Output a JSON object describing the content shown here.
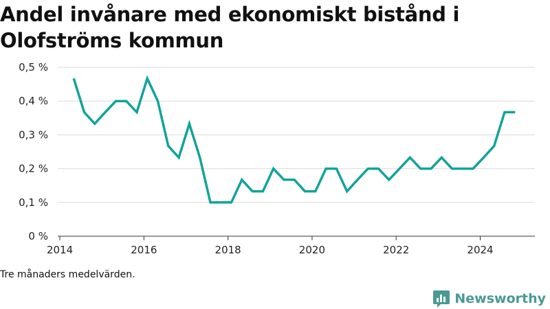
{
  "title": "Andel invånare med ekonomiskt bistånd i Olofströms kommun",
  "footnote": "Tre månaders medelvärden.",
  "brand": {
    "name": "Newsworthy",
    "icon": "newsworthy-logo-icon",
    "color": "#4a9a93"
  },
  "colors": {
    "line": "#12a39a",
    "grid": "#d9d9d9",
    "axis": "#333333"
  },
  "chart_data": {
    "type": "line",
    "title": "Andel invånare med ekonomiskt bistånd i Olofströms kommun",
    "xlabel": "",
    "ylabel": "",
    "xlim": [
      2013.95,
      2025.3
    ],
    "ylim": [
      0,
      0.5
    ],
    "y_ticks": [
      0,
      0.1,
      0.2,
      0.3,
      0.4,
      0.5
    ],
    "y_tick_labels": [
      "0 %",
      "0,1 %",
      "0,2 %",
      "0,3 %",
      "0,4 %",
      "0,5 %"
    ],
    "x_ticks": [
      2014,
      2016,
      2018,
      2020,
      2022,
      2024
    ],
    "x_tick_labels": [
      "2014",
      "2016",
      "2018",
      "2020",
      "2022",
      "2024"
    ],
    "grid": true,
    "series": [
      {
        "values": [
          [
            2014.33,
            0.467
          ],
          [
            2014.58,
            0.367
          ],
          [
            2014.83,
            0.333
          ],
          [
            2015.08,
            0.367
          ],
          [
            2015.33,
            0.4
          ],
          [
            2015.58,
            0.4
          ],
          [
            2015.83,
            0.367
          ],
          [
            2016.08,
            0.467
          ],
          [
            2016.33,
            0.4
          ],
          [
            2016.58,
            0.267
          ],
          [
            2016.83,
            0.233
          ],
          [
            2017.08,
            0.333
          ],
          [
            2017.33,
            0.233
          ],
          [
            2017.58,
            0.1
          ],
          [
            2017.83,
            0.1
          ],
          [
            2018.08,
            0.1
          ],
          [
            2018.33,
            0.167
          ],
          [
            2018.58,
            0.133
          ],
          [
            2018.83,
            0.133
          ],
          [
            2019.08,
            0.2
          ],
          [
            2019.33,
            0.167
          ],
          [
            2019.58,
            0.167
          ],
          [
            2019.83,
            0.133
          ],
          [
            2020.08,
            0.133
          ],
          [
            2020.33,
            0.2
          ],
          [
            2020.58,
            0.2
          ],
          [
            2020.83,
            0.133
          ],
          [
            2021.08,
            0.167
          ],
          [
            2021.33,
            0.2
          ],
          [
            2021.58,
            0.2
          ],
          [
            2021.83,
            0.167
          ],
          [
            2022.08,
            0.2
          ],
          [
            2022.33,
            0.233
          ],
          [
            2022.58,
            0.2
          ],
          [
            2022.83,
            0.2
          ],
          [
            2023.08,
            0.233
          ],
          [
            2023.33,
            0.2
          ],
          [
            2023.58,
            0.2
          ],
          [
            2023.83,
            0.2
          ],
          [
            2024.08,
            0.233
          ],
          [
            2024.33,
            0.267
          ],
          [
            2024.58,
            0.367
          ],
          [
            2024.83,
            0.367
          ]
        ]
      }
    ]
  }
}
